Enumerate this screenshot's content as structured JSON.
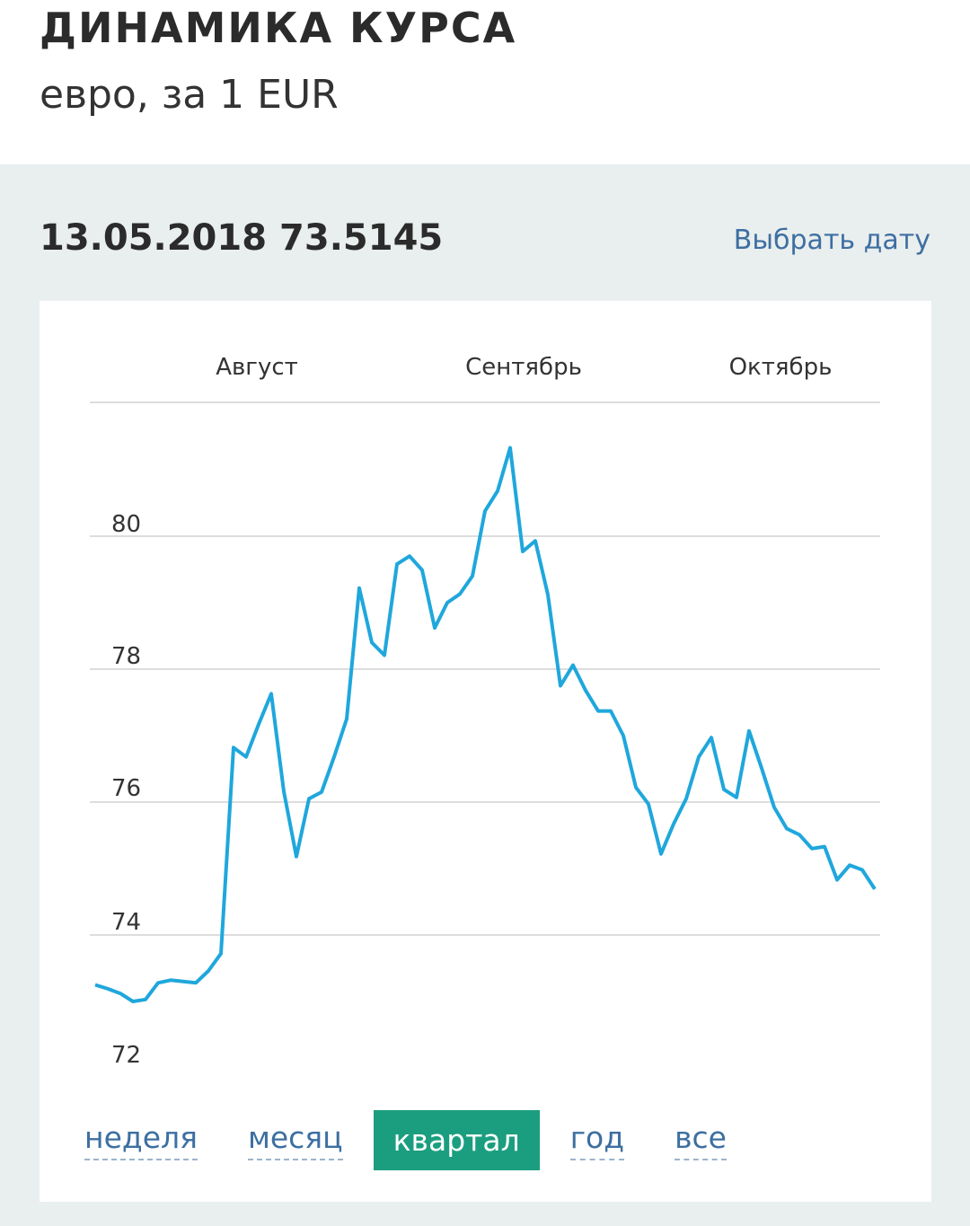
{
  "header": {
    "title": "ДИНАМИКА КУРСА",
    "subtitle": "евро, за 1 EUR"
  },
  "rate": {
    "date": "13.05.2018",
    "value": "73.5145",
    "pick_date_label": "Выбрать дату"
  },
  "period_tabs": [
    {
      "label": "неделя",
      "active": false
    },
    {
      "label": "месяц",
      "active": false
    },
    {
      "label": "квартал",
      "active": true
    },
    {
      "label": "год",
      "active": false
    },
    {
      "label": "все",
      "active": false
    }
  ],
  "colors": {
    "line": "#1fa7dc",
    "grid": "#dddddd",
    "accent": "#1b9e7f",
    "link": "#3d6fa1"
  },
  "chart_data": {
    "type": "line",
    "title": "",
    "xlabel": "",
    "ylabel": "",
    "x_tick_labels": [
      "Август",
      "Сентябрь",
      "Октябрь"
    ],
    "y_ticks": [
      "80",
      "78",
      "76",
      "74",
      "72"
    ],
    "ylim": [
      72,
      82
    ],
    "series": [
      {
        "name": "EUR",
        "values": [
          73.25,
          73.19,
          73.12,
          73.0,
          73.03,
          73.28,
          73.32,
          73.3,
          73.28,
          73.46,
          73.72,
          76.82,
          76.68,
          77.17,
          77.63,
          76.16,
          75.18,
          76.05,
          76.15,
          76.68,
          77.25,
          79.22,
          78.4,
          78.21,
          79.58,
          79.7,
          79.49,
          78.62,
          79.0,
          79.13,
          79.4,
          80.38,
          80.68,
          81.33,
          79.77,
          79.93,
          79.12,
          77.75,
          78.06,
          77.68,
          77.37,
          77.37,
          77.0,
          76.22,
          75.97,
          75.22,
          75.67,
          76.05,
          76.68,
          76.97,
          76.19,
          76.07,
          77.07,
          76.51,
          75.92,
          75.6,
          75.51,
          75.3,
          75.33,
          74.83,
          75.05,
          74.98,
          74.69
        ]
      }
    ]
  }
}
